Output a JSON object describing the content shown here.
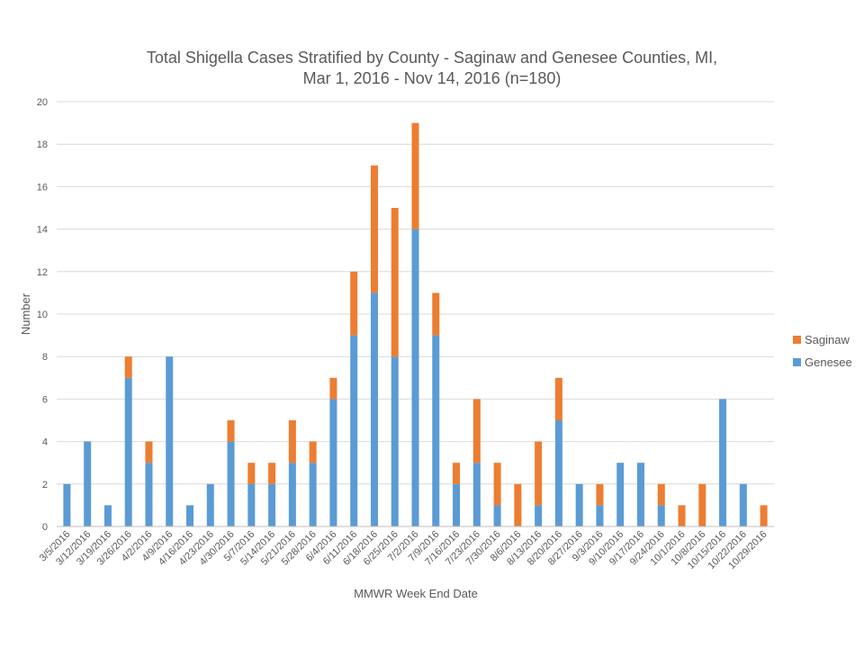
{
  "chart_data": {
    "type": "bar",
    "stacked": true,
    "title": "Total Shigella Cases Stratified by County - Saginaw and Genesee Counties, MI,",
    "subtitle": "Mar 1, 2016 - Nov 14, 2016 (n=180)",
    "xlabel": "MMWR Week End Date",
    "ylabel": "Number",
    "ylim": [
      0,
      20
    ],
    "yticks": [
      0,
      2,
      4,
      6,
      8,
      10,
      12,
      14,
      16,
      18,
      20
    ],
    "grid": true,
    "legend_position": "right",
    "categories": [
      "3/5/2016",
      "3/12/2016",
      "3/19/2016",
      "3/26/2016",
      "4/2/2016",
      "4/9/2016",
      "4/16/2016",
      "4/23/2016",
      "4/30/2016",
      "5/7/2016",
      "5/14/2016",
      "5/21/2016",
      "5/28/2016",
      "6/4/2016",
      "6/11/2016",
      "6/18/2016",
      "6/25/2016",
      "7/2/2016",
      "7/9/2016",
      "7/16/2016",
      "7/23/2016",
      "7/30/2016",
      "8/6/2016",
      "8/13/2016",
      "8/20/2016",
      "8/27/2016",
      "9/3/2016",
      "9/10/2016",
      "9/17/2016",
      "9/24/2016",
      "10/1/2016",
      "10/8/2016",
      "10/15/2016",
      "10/22/2016",
      "10/29/2016"
    ],
    "series": [
      {
        "name": "Genesee",
        "color": "#5b9bd5",
        "values": [
          2,
          4,
          1,
          7,
          3,
          8,
          1,
          2,
          4,
          2,
          2,
          3,
          3,
          6,
          9,
          11,
          8,
          14,
          9,
          2,
          3,
          1,
          0,
          1,
          5,
          2,
          1,
          3,
          3,
          1,
          0,
          0,
          6,
          2,
          0
        ]
      },
      {
        "name": "Saginaw",
        "color": "#ed7d31",
        "values": [
          0,
          0,
          0,
          1,
          1,
          0,
          0,
          0,
          1,
          1,
          1,
          2,
          1,
          1,
          3,
          6,
          7,
          5,
          2,
          1,
          3,
          2,
          2,
          3,
          2,
          0,
          1,
          0,
          0,
          1,
          1,
          2,
          0,
          0,
          1
        ]
      }
    ],
    "legend": [
      "Saginaw",
      "Genesee"
    ],
    "colors": {
      "gridline": "#d9d9d9",
      "axis": "#bfbfbf",
      "text": "#595959"
    }
  }
}
